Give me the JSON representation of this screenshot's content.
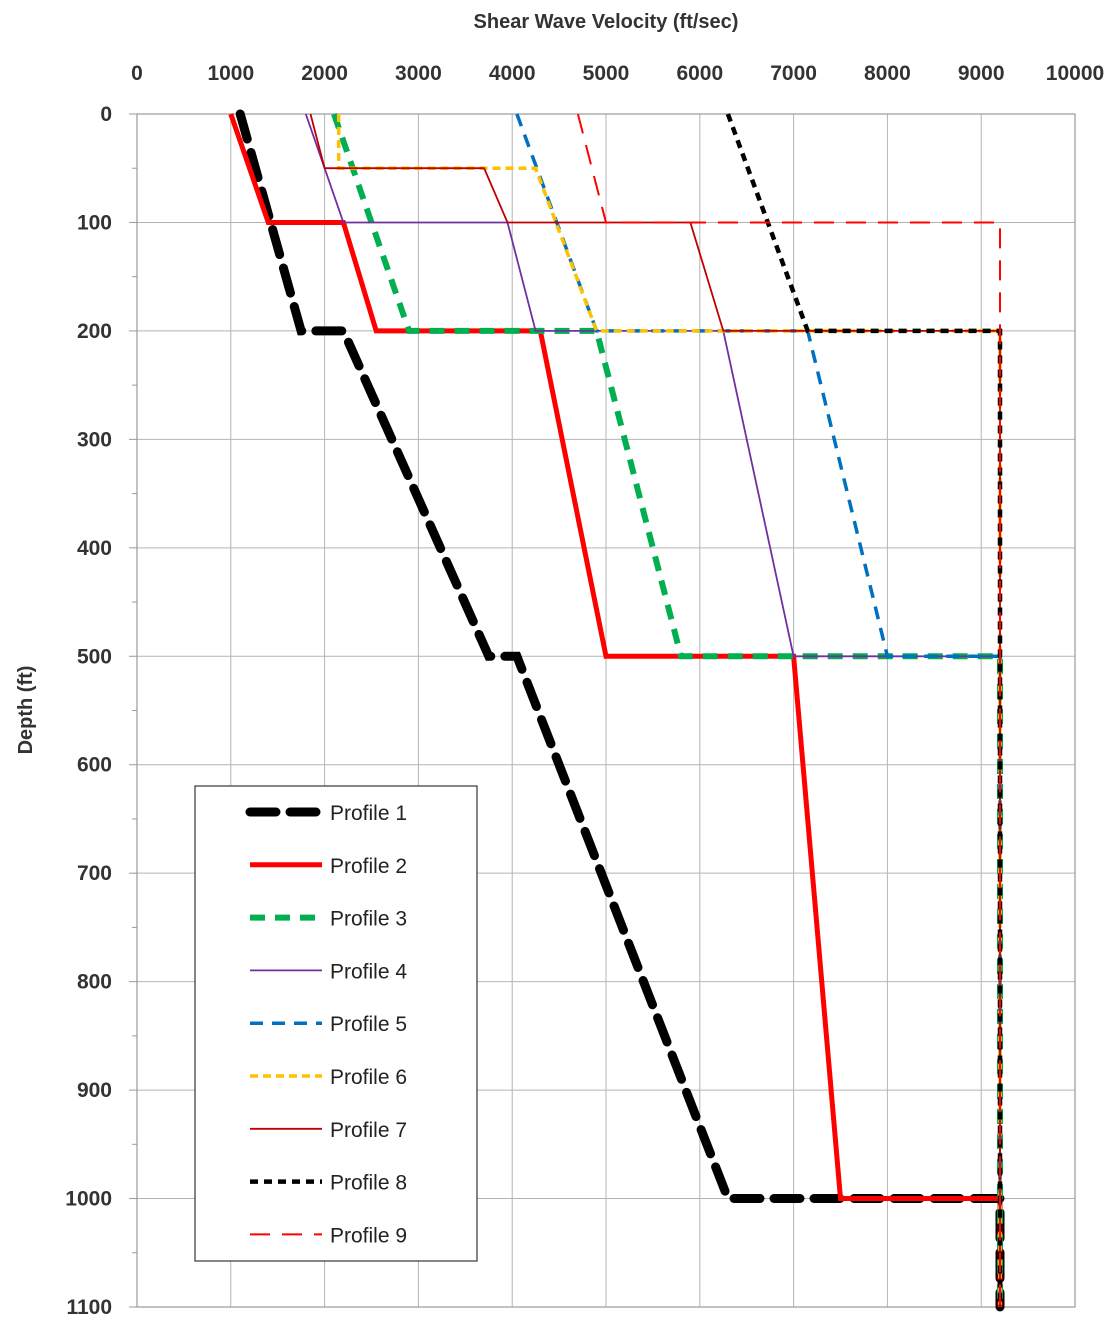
{
  "chart_data": {
    "type": "line",
    "xlabel": "Shear Wave Velocity (ft/sec)",
    "ylabel": "Depth (ft)",
    "xlim": [
      0,
      10000
    ],
    "ylim": [
      0,
      1100
    ],
    "x_axis_position": "top",
    "y_axis_inverted": true,
    "grid": true,
    "legend_position": "bottom-left",
    "xticks": [
      "0",
      "1000",
      "2000",
      "3000",
      "4000",
      "5000",
      "6000",
      "7000",
      "8000",
      "9000",
      "10000"
    ],
    "yticks": [
      "0",
      "100",
      "200",
      "300",
      "400",
      "500",
      "600",
      "700",
      "800",
      "900",
      "1000",
      "1100"
    ],
    "series": [
      {
        "name": "Profile 1",
        "color": "#000000",
        "style": "long-dash-thick",
        "points": [
          [
            1100,
            0
          ],
          [
            1750,
            200
          ],
          [
            2200,
            200
          ],
          [
            3750,
            500
          ],
          [
            4050,
            500
          ],
          [
            6300,
            1000
          ],
          [
            9200,
            1000
          ],
          [
            9200,
            1100
          ]
        ]
      },
      {
        "name": "Profile 2",
        "color": "#ff0000",
        "style": "solid-thick",
        "points": [
          [
            1000,
            0
          ],
          [
            1400,
            100
          ],
          [
            2200,
            100
          ],
          [
            2550,
            200
          ],
          [
            4300,
            200
          ],
          [
            5000,
            500
          ],
          [
            7000,
            500
          ],
          [
            7500,
            1000
          ],
          [
            9200,
            1000
          ],
          [
            9200,
            1100
          ]
        ]
      },
      {
        "name": "Profile 3",
        "color": "#00b050",
        "style": "dash-thick",
        "points": [
          [
            2100,
            0
          ],
          [
            2900,
            200
          ],
          [
            4900,
            200
          ],
          [
            5800,
            500
          ],
          [
            9200,
            500
          ],
          [
            9200,
            1100
          ]
        ]
      },
      {
        "name": "Profile 4",
        "color": "#7030a0",
        "style": "solid-thin",
        "points": [
          [
            1800,
            0
          ],
          [
            2000,
            50
          ],
          [
            2200,
            100
          ],
          [
            3950,
            100
          ],
          [
            4250,
            200
          ],
          [
            6250,
            200
          ],
          [
            7000,
            500
          ],
          [
            9200,
            500
          ],
          [
            9200,
            1100
          ]
        ]
      },
      {
        "name": "Profile 5",
        "color": "#0070c0",
        "style": "dash-medium",
        "points": [
          [
            4050,
            0
          ],
          [
            4900,
            200
          ],
          [
            7150,
            200
          ],
          [
            8000,
            500
          ],
          [
            9200,
            500
          ],
          [
            9200,
            1100
          ]
        ]
      },
      {
        "name": "Profile 6",
        "color": "#ffc000",
        "style": "dash-short",
        "points": [
          [
            2150,
            0
          ],
          [
            2150,
            50
          ],
          [
            4250,
            50
          ],
          [
            4900,
            200
          ],
          [
            9200,
            200
          ],
          [
            9200,
            1100
          ]
        ]
      },
      {
        "name": "Profile 7",
        "color": "#c00000",
        "style": "solid-thin",
        "points": [
          [
            1850,
            0
          ],
          [
            2000,
            50
          ],
          [
            3700,
            50
          ],
          [
            3950,
            100
          ],
          [
            5900,
            100
          ],
          [
            6250,
            200
          ],
          [
            9200,
            200
          ],
          [
            9200,
            1100
          ]
        ]
      },
      {
        "name": "Profile 8",
        "color": "#000000",
        "style": "dash-short-medium",
        "points": [
          [
            6300,
            0
          ],
          [
            7150,
            200
          ],
          [
            9200,
            200
          ],
          [
            9200,
            1100
          ]
        ]
      },
      {
        "name": "Profile 9",
        "color": "#ff0000",
        "style": "long-dash-thin",
        "points": [
          [
            4700,
            0
          ],
          [
            5000,
            100
          ],
          [
            9200,
            100
          ],
          [
            9200,
            1100
          ]
        ]
      }
    ]
  }
}
